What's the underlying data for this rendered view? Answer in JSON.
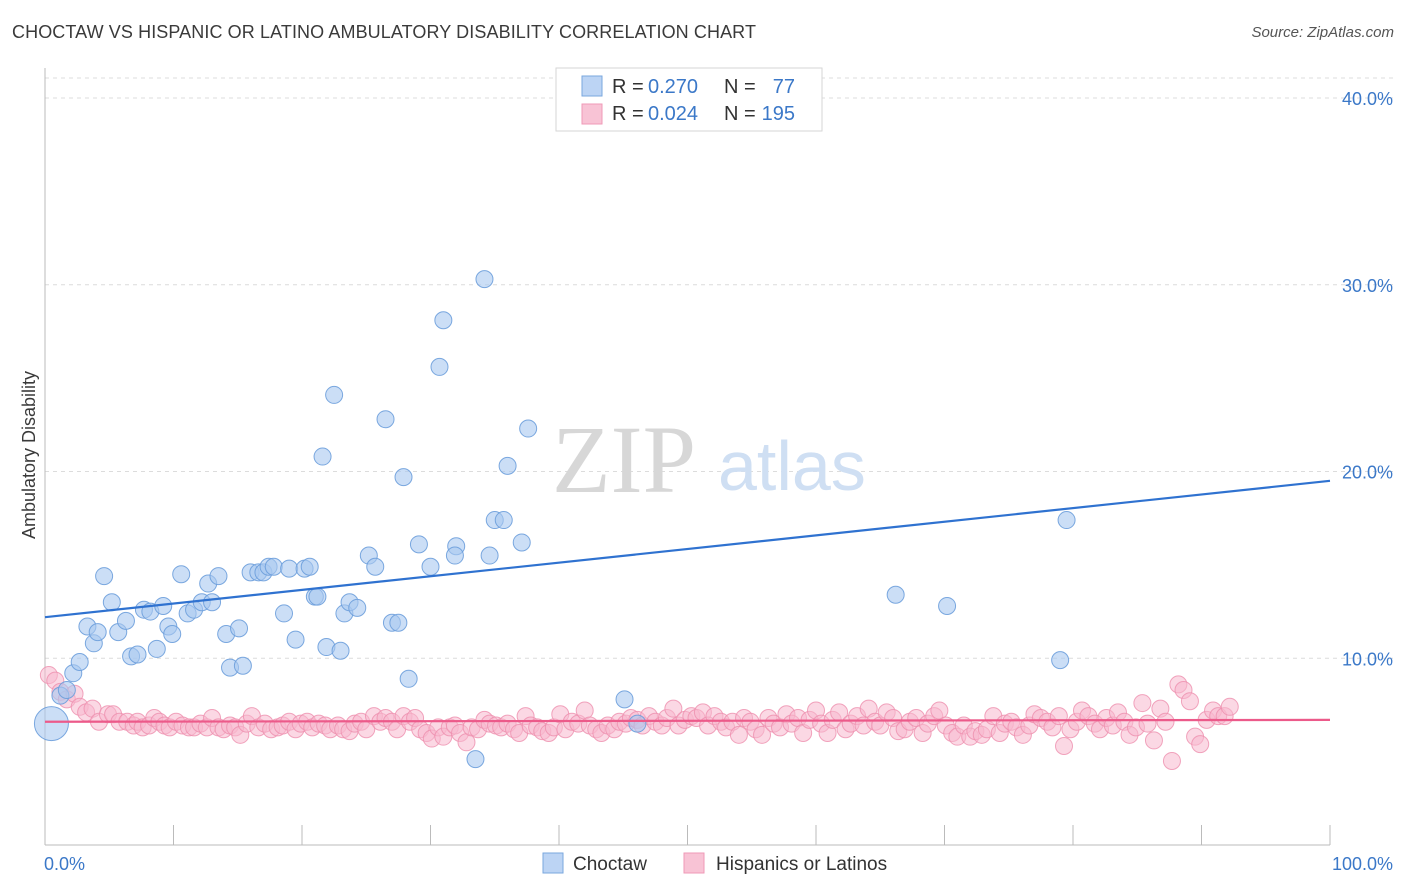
{
  "title": "CHOCTAW VS HISPANIC OR LATINO AMBULATORY DISABILITY CORRELATION CHART",
  "source": "Source: ZipAtlas.com",
  "watermark": {
    "zip": "ZIP",
    "atlas": "atlas"
  },
  "legend_top": {
    "rows": [
      {
        "r_label": "R =",
        "r_value": "0.270",
        "n_label": "N =",
        "n_value": "77"
      },
      {
        "r_label": "R =",
        "r_value": "0.024",
        "n_label": "N =",
        "n_value": "195"
      }
    ]
  },
  "colors": {
    "choctaw_fill": "#a9c8f0",
    "choctaw_stroke": "#6d9fdc",
    "choctaw_line": "#2f72d0",
    "hisp_fill": "#f7b8cd",
    "hisp_stroke": "#ee8fae",
    "hisp_line": "#ec5a8a",
    "tick_text": "#3b78c8",
    "grid": "#dcdcdc"
  },
  "chart_data": {
    "type": "scatter",
    "title": "CHOCTAW VS HISPANIC OR LATINO AMBULATORY DISABILITY CORRELATION CHART",
    "xlabel": "",
    "ylabel": "Ambulatory Disability",
    "xlim": [
      0,
      100
    ],
    "ylim": [
      0,
      40
    ],
    "x_tick_labels": [
      "0.0%",
      "100.0%"
    ],
    "y_ticks": [
      10,
      20,
      30,
      40
    ],
    "y_tick_labels": [
      "10.0%",
      "20.0%",
      "30.0%",
      "40.0%"
    ],
    "grid": "horizontal dashed",
    "legend_position": "top-center",
    "series": [
      {
        "name": "Choctaw",
        "trend": {
          "x": [
            0,
            100
          ],
          "y": [
            12.2,
            19.5
          ]
        },
        "points": [
          [
            0.5,
            6.5
          ],
          [
            1.2,
            8.0
          ],
          [
            1.7,
            8.3
          ],
          [
            2.2,
            9.2
          ],
          [
            2.7,
            9.8
          ],
          [
            3.3,
            11.7
          ],
          [
            3.8,
            10.8
          ],
          [
            4.1,
            11.4
          ],
          [
            4.6,
            14.4
          ],
          [
            5.2,
            13.0
          ],
          [
            5.7,
            11.4
          ],
          [
            6.3,
            12.0
          ],
          [
            6.7,
            10.1
          ],
          [
            7.2,
            10.2
          ],
          [
            7.7,
            12.6
          ],
          [
            8.2,
            12.5
          ],
          [
            8.7,
            10.5
          ],
          [
            9.2,
            12.8
          ],
          [
            9.6,
            11.7
          ],
          [
            9.9,
            11.3
          ],
          [
            10.6,
            14.5
          ],
          [
            11.1,
            12.4
          ],
          [
            11.6,
            12.6
          ],
          [
            12.2,
            13.0
          ],
          [
            12.7,
            14.0
          ],
          [
            13.0,
            13.0
          ],
          [
            13.5,
            14.4
          ],
          [
            14.1,
            11.3
          ],
          [
            14.4,
            9.5
          ],
          [
            15.1,
            11.6
          ],
          [
            15.4,
            9.6
          ],
          [
            16.0,
            14.6
          ],
          [
            16.6,
            14.6
          ],
          [
            17.0,
            14.6
          ],
          [
            17.4,
            14.9
          ],
          [
            17.8,
            14.9
          ],
          [
            18.6,
            12.4
          ],
          [
            19.0,
            14.8
          ],
          [
            19.5,
            11.0
          ],
          [
            20.2,
            14.8
          ],
          [
            20.6,
            14.9
          ],
          [
            21.0,
            13.3
          ],
          [
            21.6,
            20.8
          ],
          [
            21.9,
            10.6
          ],
          [
            22.5,
            24.1
          ],
          [
            23.0,
            10.4
          ],
          [
            23.3,
            12.4
          ],
          [
            23.7,
            13.0
          ],
          [
            24.3,
            12.7
          ],
          [
            25.2,
            15.5
          ],
          [
            25.7,
            14.9
          ],
          [
            26.5,
            22.8
          ],
          [
            27.0,
            11.9
          ],
          [
            27.5,
            11.9
          ],
          [
            27.9,
            19.7
          ],
          [
            28.3,
            8.9
          ],
          [
            29.1,
            16.1
          ],
          [
            30.0,
            14.9
          ],
          [
            30.7,
            25.6
          ],
          [
            32.0,
            16.0
          ],
          [
            31.9,
            15.5
          ],
          [
            33.5,
            4.6
          ],
          [
            34.2,
            30.3
          ],
          [
            34.6,
            15.5
          ],
          [
            35.0,
            17.4
          ],
          [
            35.7,
            17.4
          ],
          [
            36.0,
            20.3
          ],
          [
            37.1,
            16.2
          ],
          [
            37.6,
            22.3
          ],
          [
            31.0,
            28.1
          ],
          [
            45.1,
            7.8
          ],
          [
            46.1,
            6.5
          ],
          [
            66.2,
            13.4
          ],
          [
            70.2,
            12.8
          ],
          [
            79.0,
            9.9
          ],
          [
            79.5,
            17.4
          ],
          [
            21.2,
            13.3
          ]
        ]
      },
      {
        "name": "Hispanics or Latinos",
        "trend": {
          "x": [
            0,
            100
          ],
          "y": [
            6.6,
            6.7
          ]
        },
        "points": [
          [
            0.3,
            9.1
          ],
          [
            0.8,
            8.8
          ],
          [
            1.2,
            8.2
          ],
          [
            1.7,
            7.8
          ],
          [
            2.3,
            8.1
          ],
          [
            2.7,
            7.4
          ],
          [
            3.2,
            7.1
          ],
          [
            3.7,
            7.3
          ],
          [
            4.2,
            6.6
          ],
          [
            4.9,
            7.0
          ],
          [
            5.3,
            7.0
          ],
          [
            5.8,
            6.6
          ],
          [
            6.4,
            6.6
          ],
          [
            6.9,
            6.4
          ],
          [
            7.2,
            6.6
          ],
          [
            7.6,
            6.3
          ],
          [
            8.1,
            6.4
          ],
          [
            8.5,
            6.8
          ],
          [
            8.9,
            6.6
          ],
          [
            9.3,
            6.4
          ],
          [
            9.7,
            6.3
          ],
          [
            10.2,
            6.6
          ],
          [
            10.7,
            6.4
          ],
          [
            11.2,
            6.3
          ],
          [
            11.6,
            6.3
          ],
          [
            12.1,
            6.5
          ],
          [
            12.6,
            6.3
          ],
          [
            13.0,
            6.8
          ],
          [
            13.5,
            6.3
          ],
          [
            13.9,
            6.2
          ],
          [
            14.4,
            6.4
          ],
          [
            14.8,
            6.3
          ],
          [
            15.2,
            5.9
          ],
          [
            15.7,
            6.5
          ],
          [
            16.1,
            6.9
          ],
          [
            16.6,
            6.3
          ],
          [
            17.1,
            6.5
          ],
          [
            17.6,
            6.2
          ],
          [
            18.1,
            6.3
          ],
          [
            18.5,
            6.4
          ],
          [
            19.0,
            6.6
          ],
          [
            19.5,
            6.2
          ],
          [
            19.9,
            6.5
          ],
          [
            20.4,
            6.6
          ],
          [
            20.8,
            6.3
          ],
          [
            21.3,
            6.5
          ],
          [
            21.8,
            6.4
          ],
          [
            22.2,
            6.2
          ],
          [
            22.8,
            6.4
          ],
          [
            23.2,
            6.2
          ],
          [
            23.7,
            6.1
          ],
          [
            24.1,
            6.5
          ],
          [
            24.6,
            6.6
          ],
          [
            25.0,
            6.2
          ],
          [
            25.6,
            6.9
          ],
          [
            26.1,
            6.6
          ],
          [
            26.5,
            6.8
          ],
          [
            27.0,
            6.6
          ],
          [
            27.4,
            6.2
          ],
          [
            27.9,
            6.9
          ],
          [
            28.4,
            6.6
          ],
          [
            28.8,
            6.8
          ],
          [
            29.2,
            6.2
          ],
          [
            29.7,
            6.0
          ],
          [
            30.1,
            5.7
          ],
          [
            30.6,
            6.3
          ],
          [
            31.0,
            5.8
          ],
          [
            31.5,
            6.3
          ],
          [
            31.9,
            6.4
          ],
          [
            32.3,
            6.0
          ],
          [
            32.8,
            5.5
          ],
          [
            33.2,
            6.3
          ],
          [
            33.7,
            6.2
          ],
          [
            34.2,
            6.7
          ],
          [
            34.6,
            6.5
          ],
          [
            35.1,
            6.4
          ],
          [
            35.5,
            6.3
          ],
          [
            36.0,
            6.5
          ],
          [
            36.5,
            6.2
          ],
          [
            36.9,
            6.0
          ],
          [
            37.4,
            6.9
          ],
          [
            37.8,
            6.4
          ],
          [
            38.3,
            6.3
          ],
          [
            38.7,
            6.1
          ],
          [
            39.2,
            6.0
          ],
          [
            39.6,
            6.3
          ],
          [
            40.1,
            7.0
          ],
          [
            40.5,
            6.2
          ],
          [
            41.0,
            6.6
          ],
          [
            41.5,
            6.5
          ],
          [
            42.0,
            7.2
          ],
          [
            42.4,
            6.4
          ],
          [
            42.9,
            6.2
          ],
          [
            43.3,
            6.0
          ],
          [
            43.8,
            6.4
          ],
          [
            44.3,
            6.2
          ],
          [
            44.7,
            6.6
          ],
          [
            45.2,
            6.5
          ],
          [
            45.6,
            6.8
          ],
          [
            46.1,
            6.7
          ],
          [
            46.5,
            6.4
          ],
          [
            47.0,
            6.9
          ],
          [
            47.5,
            6.6
          ],
          [
            48.0,
            6.4
          ],
          [
            48.4,
            6.8
          ],
          [
            48.9,
            7.3
          ],
          [
            49.3,
            6.4
          ],
          [
            49.8,
            6.7
          ],
          [
            50.3,
            6.9
          ],
          [
            50.7,
            6.8
          ],
          [
            51.2,
            7.1
          ],
          [
            51.6,
            6.4
          ],
          [
            52.1,
            6.9
          ],
          [
            52.6,
            6.6
          ],
          [
            53.0,
            6.3
          ],
          [
            53.5,
            6.6
          ],
          [
            54.0,
            5.9
          ],
          [
            54.4,
            6.8
          ],
          [
            54.9,
            6.6
          ],
          [
            55.3,
            6.2
          ],
          [
            55.8,
            5.9
          ],
          [
            56.3,
            6.8
          ],
          [
            56.7,
            6.5
          ],
          [
            57.2,
            6.3
          ],
          [
            57.7,
            7.0
          ],
          [
            58.1,
            6.5
          ],
          [
            58.6,
            6.8
          ],
          [
            59.0,
            6.0
          ],
          [
            59.5,
            6.7
          ],
          [
            60.0,
            7.2
          ],
          [
            60.4,
            6.5
          ],
          [
            60.9,
            6.0
          ],
          [
            61.3,
            6.7
          ],
          [
            61.8,
            7.1
          ],
          [
            62.3,
            6.2
          ],
          [
            62.7,
            6.5
          ],
          [
            63.2,
            6.9
          ],
          [
            63.7,
            6.4
          ],
          [
            64.1,
            7.3
          ],
          [
            64.6,
            6.6
          ],
          [
            65.0,
            6.4
          ],
          [
            65.5,
            7.1
          ],
          [
            66.0,
            6.8
          ],
          [
            66.4,
            6.1
          ],
          [
            66.9,
            6.2
          ],
          [
            67.3,
            6.6
          ],
          [
            67.8,
            6.8
          ],
          [
            68.3,
            6.0
          ],
          [
            68.7,
            6.5
          ],
          [
            69.2,
            6.9
          ],
          [
            69.6,
            7.2
          ],
          [
            70.1,
            6.4
          ],
          [
            70.6,
            6.0
          ],
          [
            71.0,
            5.8
          ],
          [
            71.5,
            6.4
          ],
          [
            72.0,
            5.8
          ],
          [
            72.4,
            6.1
          ],
          [
            72.9,
            5.9
          ],
          [
            73.3,
            6.2
          ],
          [
            73.8,
            6.9
          ],
          [
            74.3,
            6.0
          ],
          [
            74.7,
            6.5
          ],
          [
            75.2,
            6.6
          ],
          [
            75.6,
            6.3
          ],
          [
            76.1,
            5.9
          ],
          [
            76.6,
            6.4
          ],
          [
            77.0,
            7.0
          ],
          [
            77.5,
            6.8
          ],
          [
            78.0,
            6.6
          ],
          [
            78.4,
            6.3
          ],
          [
            78.9,
            6.9
          ],
          [
            79.3,
            5.3
          ],
          [
            79.8,
            6.2
          ],
          [
            80.3,
            6.6
          ],
          [
            80.7,
            7.2
          ],
          [
            81.2,
            6.9
          ],
          [
            81.7,
            6.5
          ],
          [
            82.1,
            6.2
          ],
          [
            82.6,
            6.8
          ],
          [
            83.1,
            6.4
          ],
          [
            83.5,
            7.1
          ],
          [
            84.0,
            6.6
          ],
          [
            84.4,
            5.9
          ],
          [
            84.9,
            6.3
          ],
          [
            85.4,
            7.6
          ],
          [
            85.8,
            6.5
          ],
          [
            86.3,
            5.6
          ],
          [
            86.8,
            7.3
          ],
          [
            87.2,
            6.6
          ],
          [
            87.7,
            4.5
          ],
          [
            88.2,
            8.6
          ],
          [
            88.6,
            8.3
          ],
          [
            89.1,
            7.7
          ],
          [
            89.5,
            5.8
          ],
          [
            89.9,
            5.4
          ],
          [
            90.4,
            6.7
          ],
          [
            90.9,
            7.2
          ],
          [
            91.3,
            6.9
          ],
          [
            91.8,
            6.9
          ],
          [
            92.2,
            7.4
          ]
        ]
      }
    ]
  },
  "bottom_legend": {
    "choctaw_label": "Choctaw",
    "hisp_label": "Hispanics or Latinos"
  }
}
